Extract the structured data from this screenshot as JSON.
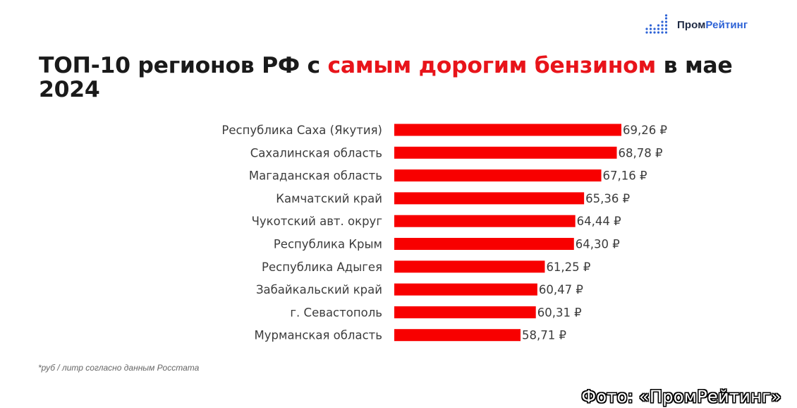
{
  "logo": {
    "name_part1": "Пром",
    "name_part2": "Рейтинг",
    "icon": "bar-dots-icon",
    "color_dark": "#1f2a44",
    "color_blue": "#2e63d6"
  },
  "title": {
    "part1": "ТОП-10 регионов РФ с ",
    "highlight": "самым дорогим бензином",
    "part2": " в мае 2024"
  },
  "footnote": "*руб / литр согласно данным Росстата",
  "credit": "Фото: «ПромРейтинг»",
  "colors": {
    "bar": "#f80000",
    "accent": "#e8141a",
    "text": "#1a1a1a",
    "label": "#3c3c3c"
  },
  "chart_data": {
    "type": "bar",
    "orientation": "horizontal",
    "categories": [
      "Республика Саха (Якутия)",
      "Сахалинская область",
      "Магаданская область",
      "Камчатский край",
      "Чукотский авт. округ",
      "Республика Крым",
      "Республика Адыгея",
      "Забайкальский край",
      "г. Севастополь",
      "Мурманская область"
    ],
    "values": [
      69.26,
      68.78,
      67.16,
      65.36,
      64.44,
      64.3,
      61.25,
      60.47,
      60.31,
      58.71
    ],
    "value_labels": [
      "69,26 ₽",
      "68,78 ₽",
      "67,16 ₽",
      "65,36 ₽",
      "64,44 ₽",
      "64,30 ₽",
      "61,25 ₽",
      "60,47 ₽",
      "60,31 ₽",
      "58,71 ₽"
    ],
    "xlim": [
      45.5,
      69.26
    ],
    "grid": false,
    "legend": "none"
  }
}
